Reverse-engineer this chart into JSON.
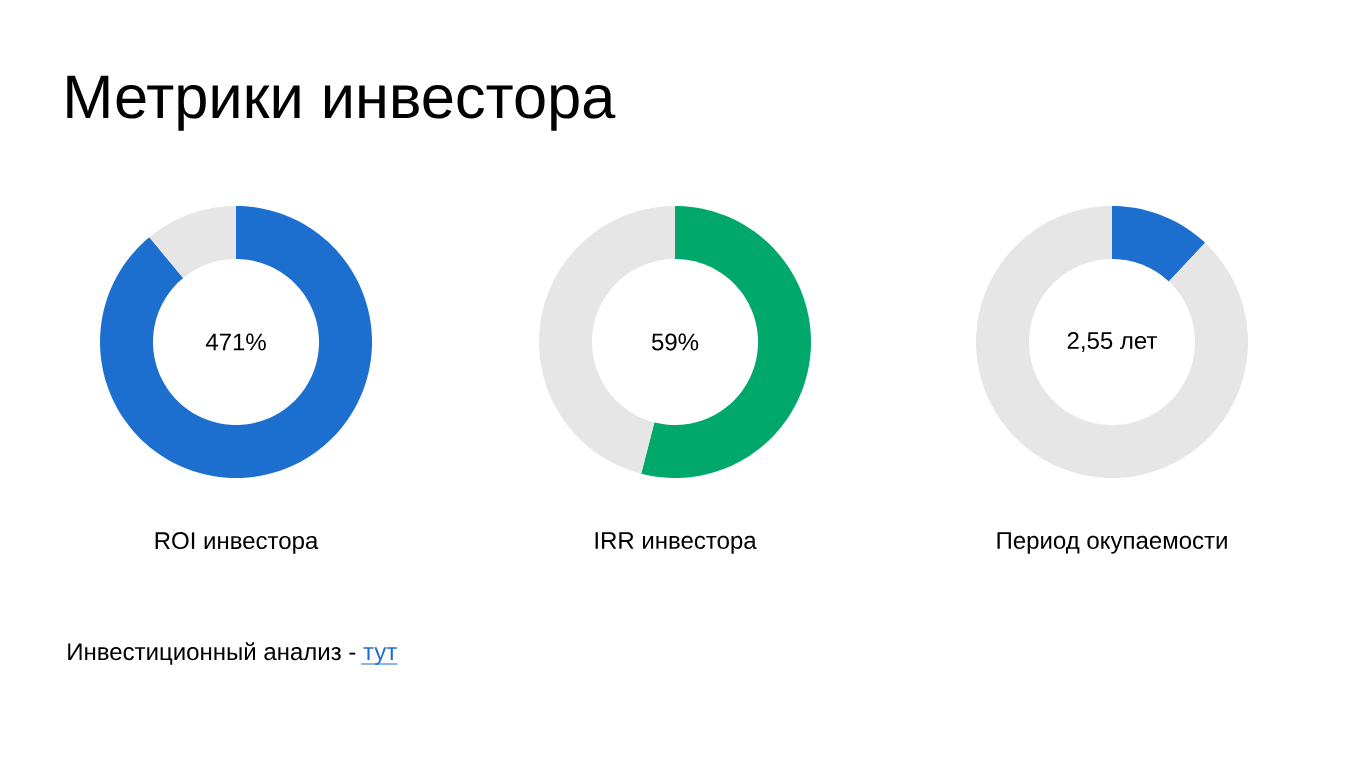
{
  "chart_data": [
    {
      "type": "donut",
      "title": "Метрики инвестора",
      "xlabel": "ROI инвестора",
      "categories": [
        null,
        null
      ],
      "values": [
        89,
        11
      ],
      "colors": [
        "#1c6fce",
        "#e6e6e6"
      ],
      "annotations": [
        "471%",
        "Инвестиционный анализ -",
        "тут"
      ]
    },
    {
      "type": "donut",
      "xlabel": "IRR инвестора",
      "categories": [
        null,
        null
      ],
      "values": [
        54,
        46
      ],
      "colors": [
        "#00a96b",
        "#e6e6e6"
      ],
      "annotations": [
        "59%"
      ]
    },
    {
      "type": "donut",
      "xlabel": "Период окупаемости",
      "categories": [
        null,
        null
      ],
      "values": [
        12,
        88
      ],
      "colors": [
        "#1c6fce",
        "#e6e6e6"
      ],
      "annotations": [
        "2,55 лет"
      ]
    }
  ]
}
